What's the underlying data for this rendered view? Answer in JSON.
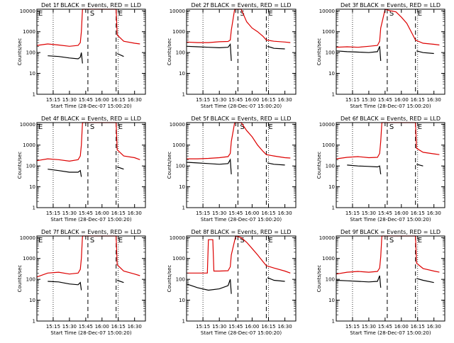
{
  "colors": {
    "events": "#000000",
    "lld": "#dd0000",
    "frame": "#000000",
    "background": "#ffffff"
  },
  "chart_data": [
    {
      "type": "line",
      "title": "Det 1f BLACK = Events, RED = LLD",
      "xlabel": "Start Time (28-Dec-07 15:00:20)",
      "ylabel": "Counts/sec",
      "x_ticks": [
        "15:15",
        "15:30",
        "15:45",
        "16:00",
        "16:15",
        "16:30"
      ],
      "y_ticks": [
        "1",
        "10",
        "100",
        "1000",
        "10000"
      ],
      "y_scale": "log",
      "ylim": [
        1,
        12000
      ],
      "markers": [
        {
          "label": "E",
          "x": "15:00"
        },
        {
          "label": "S",
          "x": "15:47"
        },
        {
          "label": "E",
          "x": "16:13"
        }
      ],
      "series": [
        {
          "color": "red",
          "x": [
            "15:00",
            "15:10",
            "15:20",
            "15:30",
            "15:38",
            "15:40",
            "15:41",
            "15:42",
            "16:13",
            "16:14",
            "16:20",
            "16:30",
            "16:35"
          ],
          "values": [
            220,
            260,
            230,
            200,
            220,
            300,
            1000,
            12000,
            12000,
            700,
            350,
            280,
            260
          ]
        },
        {
          "color": "black",
          "x": [
            "15:10",
            "15:20",
            "15:30",
            "15:38",
            "15:40",
            "15:41",
            "15:42",
            "16:13",
            "16:14",
            "16:20"
          ],
          "values": [
            70,
            65,
            55,
            50,
            60,
            100,
            30,
            null,
            90,
            65
          ]
        }
      ]
    },
    {
      "type": "line",
      "title": "Det 2f BLACK = Events, RED = LLD",
      "xlabel": "Start Time (28-Dec-07 15:00:20)",
      "ylabel": "Counts/sec",
      "x_ticks": [
        "15:15",
        "15:30",
        "15:45",
        "16:00",
        "16:15",
        "16:30"
      ],
      "y_ticks": [
        "1",
        "10",
        "100",
        "1000",
        "10000"
      ],
      "y_scale": "log",
      "ylim": [
        1,
        12000
      ],
      "markers": [
        {
          "label": "S",
          "x": "15:47"
        },
        {
          "label": "E",
          "x": "16:13"
        }
      ],
      "series": [
        {
          "color": "red",
          "x": [
            "15:00",
            "15:10",
            "15:20",
            "15:30",
            "15:38",
            "15:40",
            "15:41",
            "15:44",
            "15:50",
            "15:55",
            "16:00",
            "16:05",
            "16:10",
            "16:13",
            "16:20",
            "16:30",
            "16:35"
          ],
          "values": [
            320,
            300,
            300,
            330,
            340,
            400,
            1200,
            12000,
            12000,
            3000,
            1500,
            1000,
            600,
            400,
            350,
            320,
            300
          ]
        },
        {
          "color": "black",
          "x": [
            "15:00",
            "15:10",
            "15:20",
            "15:30",
            "15:38",
            "15:40",
            "15:41",
            "16:13",
            "16:14",
            "16:20",
            "16:30"
          ],
          "values": [
            200,
            190,
            180,
            170,
            180,
            250,
            40,
            null,
            200,
            160,
            150
          ]
        }
      ]
    },
    {
      "type": "line",
      "title": "Det 3f BLACK = Events, RED = LLD",
      "xlabel": "Start Time (28-Dec-07 15:00:20)",
      "ylabel": "Counts/sec",
      "x_ticks": [
        "15:15",
        "15:30",
        "15:45",
        "16:00",
        "16:15",
        "16:30"
      ],
      "y_ticks": [
        "1",
        "10",
        "100",
        "1000",
        "10000"
      ],
      "y_scale": "log",
      "ylim": [
        1,
        12000
      ],
      "markers": [
        {
          "label": "S",
          "x": "15:47"
        },
        {
          "label": "E",
          "x": "16:13"
        }
      ],
      "series": [
        {
          "color": "red",
          "x": [
            "15:00",
            "15:10",
            "15:20",
            "15:30",
            "15:38",
            "15:40",
            "15:41",
            "15:45",
            "15:50",
            "15:55",
            "16:00",
            "16:05",
            "16:10",
            "16:13",
            "16:20",
            "16:30",
            "16:35"
          ],
          "values": [
            180,
            190,
            180,
            200,
            220,
            350,
            1500,
            12000,
            10000,
            9000,
            5000,
            2500,
            800,
            400,
            280,
            250,
            230
          ]
        },
        {
          "color": "black",
          "x": [
            "15:00",
            "15:10",
            "15:20",
            "15:30",
            "15:38",
            "15:40",
            "15:41",
            "16:13",
            "16:14",
            "16:20",
            "16:30"
          ],
          "values": [
            120,
            110,
            105,
            100,
            110,
            200,
            40,
            null,
            120,
            100,
            90
          ]
        }
      ]
    },
    {
      "type": "line",
      "title": "Det 4f BLACK = Events, RED = LLD",
      "xlabel": "Start Time (28-Dec-07 15:00:20)",
      "ylabel": "Counts/sec",
      "x_ticks": [
        "15:15",
        "15:30",
        "15:45",
        "16:00",
        "16:15",
        "16:30"
      ],
      "y_ticks": [
        "1",
        "10",
        "100",
        "1000",
        "10000"
      ],
      "y_scale": "log",
      "ylim": [
        1,
        12000
      ],
      "markers": [
        {
          "label": "E",
          "x": "15:00"
        },
        {
          "label": "S",
          "x": "15:47"
        },
        {
          "label": "E",
          "x": "16:13"
        }
      ],
      "series": [
        {
          "color": "red",
          "x": [
            "15:00",
            "15:10",
            "15:20",
            "15:30",
            "15:38",
            "15:40",
            "15:41",
            "15:42",
            "16:13",
            "16:14",
            "16:20",
            "16:30",
            "16:35"
          ],
          "values": [
            180,
            220,
            200,
            170,
            200,
            300,
            1000,
            12000,
            12000,
            600,
            300,
            250,
            200
          ]
        },
        {
          "color": "black",
          "x": [
            "15:10",
            "15:20",
            "15:30",
            "15:38",
            "15:40",
            "15:41",
            "16:13",
            "16:14",
            "16:20"
          ],
          "values": [
            70,
            60,
            50,
            50,
            60,
            30,
            null,
            90,
            70
          ]
        }
      ]
    },
    {
      "type": "line",
      "title": "Det 5f BLACK = Events, RED = LLD",
      "xlabel": "Start Time (28-Dec-07 15:00:20)",
      "ylabel": "Counts/sec",
      "x_ticks": [
        "15:15",
        "15:30",
        "15:45",
        "16:00",
        "16:15",
        "16:30"
      ],
      "y_ticks": [
        "1",
        "10",
        "100",
        "1000",
        "10000"
      ],
      "y_scale": "log",
      "ylim": [
        1,
        12000
      ],
      "markers": [
        {
          "label": "S",
          "x": "15:47"
        },
        {
          "label": "E",
          "x": "16:13"
        }
      ],
      "series": [
        {
          "color": "red",
          "x": [
            "15:00",
            "15:10",
            "15:20",
            "15:30",
            "15:38",
            "15:40",
            "15:41",
            "15:44",
            "15:50",
            "15:55",
            "16:00",
            "16:05",
            "16:10",
            "16:13",
            "16:20",
            "16:30",
            "16:35"
          ],
          "values": [
            220,
            220,
            230,
            250,
            280,
            400,
            1500,
            12000,
            12000,
            5000,
            2500,
            1000,
            500,
            350,
            300,
            250,
            240
          ]
        },
        {
          "color": "black",
          "x": [
            "15:00",
            "15:10",
            "15:20",
            "15:30",
            "15:38",
            "15:40",
            "15:41",
            "16:13",
            "16:14",
            "16:20",
            "16:30"
          ],
          "values": [
            150,
            140,
            130,
            120,
            130,
            200,
            40,
            null,
            140,
            120,
            110
          ]
        }
      ]
    },
    {
      "type": "line",
      "title": "Det 6f BLACK = Events, RED = LLD",
      "xlabel": "Start Time (28-Dec-07 15:00:20)",
      "ylabel": "Counts/sec",
      "x_ticks": [
        "15:15",
        "15:30",
        "15:45",
        "16:00",
        "16:15",
        "16:30"
      ],
      "y_ticks": [
        "1",
        "10",
        "100",
        "1000",
        "10000"
      ],
      "y_scale": "log",
      "ylim": [
        1,
        12000
      ],
      "markers": [
        {
          "label": "S",
          "x": "15:47"
        },
        {
          "label": "E",
          "x": "16:13"
        }
      ],
      "series": [
        {
          "color": "red",
          "x": [
            "15:00",
            "15:10",
            "15:20",
            "15:30",
            "15:38",
            "15:40",
            "15:41",
            "15:42",
            "16:13",
            "16:14",
            "16:20",
            "16:30",
            "16:35"
          ],
          "values": [
            220,
            260,
            280,
            250,
            260,
            400,
            1500,
            12000,
            12000,
            700,
            450,
            380,
            350
          ]
        },
        {
          "color": "black",
          "x": [
            "15:10",
            "15:20",
            "15:30",
            "15:38",
            "15:40",
            "15:41",
            "16:13",
            "16:14",
            "16:20"
          ],
          "values": [
            110,
            100,
            95,
            90,
            100,
            40,
            null,
            120,
            100
          ]
        }
      ]
    },
    {
      "type": "line",
      "title": "Det 7f BLACK = Events, RED = LLD",
      "xlabel": "Start Time (28-Dec-07 15:00:20)",
      "ylabel": "Counts/sec",
      "x_ticks": [
        "15:15",
        "15:30",
        "15:45",
        "16:00",
        "16:15",
        "16:30"
      ],
      "y_ticks": [
        "1",
        "10",
        "100",
        "1000",
        "10000"
      ],
      "y_scale": "log",
      "ylim": [
        1,
        12000
      ],
      "markers": [
        {
          "label": "E",
          "x": "15:00"
        },
        {
          "label": "S",
          "x": "15:47"
        },
        {
          "label": "E",
          "x": "16:13"
        }
      ],
      "series": [
        {
          "color": "red",
          "x": [
            "15:00",
            "15:10",
            "15:20",
            "15:30",
            "15:38",
            "15:40",
            "15:41",
            "15:42",
            "16:13",
            "16:14",
            "16:20",
            "16:30",
            "16:35"
          ],
          "values": [
            130,
            200,
            220,
            180,
            200,
            300,
            1000,
            12000,
            12000,
            500,
            250,
            180,
            150
          ]
        },
        {
          "color": "black",
          "x": [
            "15:10",
            "15:20",
            "15:30",
            "15:38",
            "15:40",
            "15:41",
            "16:13",
            "16:14",
            "16:20"
          ],
          "values": [
            80,
            75,
            60,
            55,
            70,
            30,
            null,
            90,
            70
          ]
        }
      ]
    },
    {
      "type": "line",
      "title": "Det 8f BLACK = Events, RED = LLD",
      "xlabel": "Start Time (28-Dec-07 15:00:20)",
      "ylabel": "Counts/sec",
      "x_ticks": [
        "15:15",
        "15:30",
        "15:45",
        "16:00",
        "16:15",
        "16:30"
      ],
      "y_ticks": [
        "1",
        "10",
        "100",
        "1000",
        "10000"
      ],
      "y_scale": "log",
      "ylim": [
        1,
        12000
      ],
      "markers": [
        {
          "label": "S",
          "x": "15:47"
        },
        {
          "label": "E",
          "x": "16:13"
        }
      ],
      "series": [
        {
          "color": "red",
          "x": [
            "15:00",
            "15:10",
            "15:19",
            "15:20",
            "15:24",
            "15:25",
            "15:30",
            "15:38",
            "15:40",
            "15:41",
            "15:45",
            "15:50",
            "15:55",
            "16:00",
            "16:05",
            "16:10",
            "16:13",
            "16:20",
            "16:30",
            "16:35"
          ],
          "values": [
            200,
            200,
            200,
            8000,
            8000,
            250,
            250,
            260,
            400,
            1500,
            12000,
            10000,
            6000,
            3000,
            1500,
            700,
            450,
            350,
            250,
            200
          ]
        },
        {
          "color": "black",
          "x": [
            "15:00",
            "15:10",
            "15:20",
            "15:30",
            "15:38",
            "15:40",
            "15:41",
            "16:13",
            "16:14",
            "16:20",
            "16:30"
          ],
          "values": [
            60,
            40,
            30,
            35,
            50,
            100,
            20,
            null,
            120,
            90,
            80
          ]
        }
      ]
    },
    {
      "type": "line",
      "title": "Det 9f BLACK = Events, RED = LLD",
      "xlabel": "Start Time (28-Dec-07 15:00:20)",
      "ylabel": "Counts/sec",
      "x_ticks": [
        "15:15",
        "15:30",
        "15:45",
        "16:00",
        "16:15",
        "16:30"
      ],
      "y_ticks": [
        "1",
        "10",
        "100",
        "1000",
        "10000"
      ],
      "y_scale": "log",
      "ylim": [
        1,
        12000
      ],
      "markers": [
        {
          "label": "S",
          "x": "15:47"
        },
        {
          "label": "E",
          "x": "16:13"
        }
      ],
      "series": [
        {
          "color": "red",
          "x": [
            "15:00",
            "15:10",
            "15:20",
            "15:30",
            "15:38",
            "15:40",
            "15:41",
            "15:42",
            "16:13",
            "16:14",
            "16:20",
            "16:30",
            "16:35"
          ],
          "values": [
            180,
            220,
            240,
            220,
            240,
            350,
            1200,
            12000,
            12000,
            600,
            330,
            250,
            220
          ]
        },
        {
          "color": "black",
          "x": [
            "15:00",
            "15:10",
            "15:20",
            "15:30",
            "15:38",
            "15:40",
            "15:41",
            "16:13",
            "16:14",
            "16:20",
            "16:30"
          ],
          "values": [
            90,
            85,
            80,
            75,
            80,
            150,
            40,
            null,
            110,
            90,
            70
          ]
        }
      ]
    }
  ]
}
